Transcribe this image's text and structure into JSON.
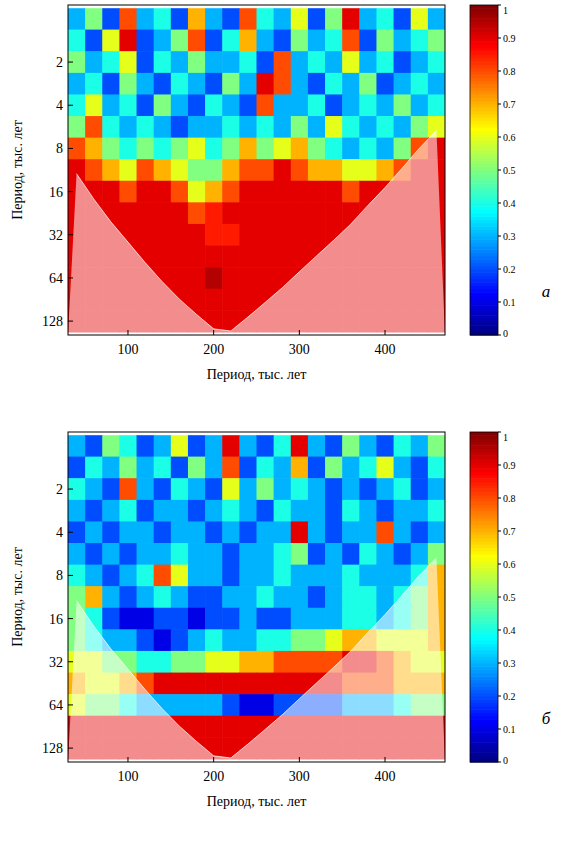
{
  "chart_data": [
    {
      "type": "heatmap",
      "log": "y",
      "xlabel": "Период, тыс. лет",
      "ylabel": "Период, тыс. лет",
      "annotations": [
        "а"
      ],
      "xlim": [
        30,
        470
      ],
      "ylim": [
        0.8,
        160
      ],
      "xticks": [
        100,
        200,
        300,
        400
      ],
      "yticks": [
        2,
        4,
        8,
        16,
        32,
        64,
        128
      ],
      "x": [
        40,
        60,
        80,
        100,
        120,
        140,
        160,
        180,
        200,
        220,
        240,
        260,
        280,
        300,
        320,
        340,
        360,
        380,
        400,
        420,
        440,
        460
      ],
      "y": [
        1,
        1.41,
        2,
        2.83,
        4,
        5.66,
        8,
        11.3,
        16,
        22.6,
        32,
        45.3,
        64,
        90.5,
        128
      ],
      "z": [
        [
          0.3,
          0.5,
          0.2,
          0.8,
          0.3,
          0.4,
          0.2,
          0.7,
          0.3,
          0.2,
          0.8,
          0.4,
          0.3,
          0.6,
          0.2,
          0.5,
          0.9,
          0.3,
          0.4,
          0.2,
          0.6,
          0.3
        ],
        [
          0.4,
          0.2,
          0.6,
          0.9,
          0.2,
          0.3,
          0.5,
          0.8,
          0.2,
          0.4,
          0.7,
          0.3,
          0.2,
          0.5,
          0.3,
          0.4,
          0.8,
          0.2,
          0.5,
          0.3,
          0.4,
          0.5
        ],
        [
          0.5,
          0.3,
          0.4,
          0.6,
          0.2,
          0.4,
          0.3,
          0.5,
          0.3,
          0.3,
          0.4,
          0.2,
          0.8,
          0.3,
          0.4,
          0.3,
          0.6,
          0.3,
          0.4,
          0.2,
          0.3,
          0.4
        ],
        [
          0.3,
          0.4,
          0.2,
          0.5,
          0.3,
          0.2,
          0.4,
          0.3,
          0.2,
          0.5,
          0.3,
          0.9,
          0.8,
          0.3,
          0.2,
          0.4,
          0.3,
          0.5,
          0.2,
          0.3,
          0.4,
          0.3
        ],
        [
          0.4,
          0.6,
          0.3,
          0.4,
          0.2,
          0.5,
          0.3,
          0.2,
          0.4,
          0.3,
          0.2,
          0.8,
          0.3,
          0.3,
          0.4,
          0.2,
          0.3,
          0.4,
          0.3,
          0.5,
          0.3,
          0.4
        ],
        [
          0.5,
          0.8,
          0.4,
          0.3,
          0.4,
          0.3,
          0.2,
          0.3,
          0.3,
          0.4,
          0.3,
          0.4,
          0.3,
          0.5,
          0.3,
          0.6,
          0.4,
          0.3,
          0.4,
          0.3,
          0.5,
          0.6
        ],
        [
          0.8,
          0.7,
          0.5,
          0.4,
          0.5,
          0.4,
          0.5,
          0.6,
          0.4,
          0.5,
          0.7,
          0.5,
          0.6,
          0.7,
          0.5,
          0.4,
          0.3,
          0.4,
          0.3,
          0.5,
          0.8,
          0.9
        ],
        [
          0.9,
          0.8,
          0.7,
          0.6,
          0.8,
          0.7,
          0.6,
          0.5,
          0.5,
          0.7,
          0.8,
          0.8,
          0.9,
          0.8,
          0.7,
          0.7,
          0.6,
          0.6,
          0.7,
          0.8,
          0.9,
          0.9
        ],
        [
          0.9,
          0.9,
          0.9,
          0.8,
          0.9,
          0.9,
          0.8,
          0.6,
          0.7,
          0.8,
          0.9,
          0.9,
          0.9,
          0.9,
          0.9,
          0.9,
          0.8,
          0.9,
          0.9,
          0.9,
          0.9,
          0.9
        ],
        [
          0.9,
          0.9,
          0.9,
          0.9,
          0.9,
          0.9,
          0.9,
          0.8,
          0.85,
          0.9,
          0.9,
          0.9,
          0.9,
          0.9,
          0.9,
          0.9,
          0.9,
          0.9,
          0.9,
          0.9,
          0.9,
          0.9
        ],
        [
          0.9,
          0.9,
          0.9,
          0.9,
          0.9,
          0.9,
          0.9,
          0.9,
          0.85,
          0.85,
          0.9,
          0.9,
          0.9,
          0.9,
          0.9,
          0.9,
          0.9,
          0.9,
          0.9,
          0.9,
          0.9,
          0.9
        ],
        [
          0.9,
          0.9,
          0.9,
          0.9,
          0.9,
          0.9,
          0.9,
          0.9,
          0.9,
          0.9,
          0.9,
          0.9,
          0.9,
          0.9,
          0.9,
          0.9,
          0.9,
          0.9,
          0.9,
          0.9,
          0.9,
          0.9
        ],
        [
          0.9,
          0.9,
          0.9,
          0.9,
          0.9,
          0.9,
          0.9,
          0.9,
          0.95,
          0.9,
          0.9,
          0.9,
          0.9,
          0.9,
          0.9,
          0.9,
          0.9,
          0.9,
          0.9,
          0.9,
          0.9,
          0.9
        ],
        [
          0.9,
          0.9,
          0.9,
          0.9,
          0.9,
          0.9,
          0.9,
          0.9,
          0.9,
          0.9,
          0.9,
          0.9,
          0.9,
          0.9,
          0.9,
          0.9,
          0.9,
          0.9,
          0.9,
          0.9,
          0.9,
          0.9
        ],
        [
          0.9,
          0.9,
          0.9,
          0.9,
          0.9,
          0.9,
          0.9,
          0.9,
          0.9,
          0.9,
          0.9,
          0.9,
          0.9,
          0.9,
          0.9,
          0.9,
          0.9,
          0.9,
          0.9,
          0.9,
          0.9,
          0.9
        ]
      ],
      "coi": [
        12,
        18,
        26,
        36,
        50,
        68,
        90,
        115,
        145,
        150,
        120,
        95,
        75,
        58,
        45,
        35,
        27,
        20,
        15,
        11,
        8,
        6
      ],
      "colorbar": {
        "range": [
          0,
          1
        ],
        "ticks": [
          0,
          0.1,
          0.2,
          0.3,
          0.4,
          0.5,
          0.6,
          0.7,
          0.8,
          0.9,
          1
        ]
      }
    },
    {
      "type": "heatmap",
      "log": "y",
      "xlabel": "Период, тыс. лет",
      "ylabel": "Период, тыс. лет",
      "annotations": [
        "б"
      ],
      "xlim": [
        30,
        470
      ],
      "ylim": [
        0.8,
        160
      ],
      "xticks": [
        100,
        200,
        300,
        400
      ],
      "yticks": [
        2,
        4,
        8,
        16,
        32,
        64,
        128
      ],
      "x": [
        40,
        60,
        80,
        100,
        120,
        140,
        160,
        180,
        200,
        220,
        240,
        260,
        280,
        300,
        320,
        340,
        360,
        380,
        400,
        420,
        440,
        460
      ],
      "y": [
        1,
        1.41,
        2,
        2.83,
        4,
        5.66,
        8,
        11.3,
        16,
        22.6,
        32,
        45.3,
        64,
        90.5,
        128
      ],
      "z": [
        [
          0.3,
          0.2,
          0.5,
          0.4,
          0.2,
          0.3,
          0.6,
          0.2,
          0.3,
          0.9,
          0.3,
          0.2,
          0.4,
          0.9,
          0.3,
          0.2,
          0.5,
          0.3,
          0.2,
          0.4,
          0.3,
          0.5
        ],
        [
          0.2,
          0.4,
          0.3,
          0.5,
          0.3,
          0.4,
          0.2,
          0.5,
          0.3,
          0.8,
          0.2,
          0.4,
          0.3,
          0.7,
          0.2,
          0.5,
          0.3,
          0.4,
          0.6,
          0.3,
          0.2,
          0.4
        ],
        [
          0.4,
          0.3,
          0.2,
          0.8,
          0.3,
          0.2,
          0.4,
          0.3,
          0.2,
          0.6,
          0.3,
          0.5,
          0.3,
          0.4,
          0.3,
          0.2,
          0.3,
          0.2,
          0.3,
          0.4,
          0.2,
          0.3
        ],
        [
          0.3,
          0.2,
          0.3,
          0.4,
          0.2,
          0.3,
          0.3,
          0.2,
          0.3,
          0.4,
          0.3,
          0.2,
          0.4,
          0.3,
          0.3,
          0.2,
          0.4,
          0.3,
          0.2,
          0.3,
          0.3,
          0.4
        ],
        [
          0.2,
          0.3,
          0.2,
          0.3,
          0.3,
          0.2,
          0.3,
          0.3,
          0.2,
          0.3,
          0.2,
          0.3,
          0.3,
          0.9,
          0.3,
          0.2,
          0.3,
          0.3,
          0.8,
          0.3,
          0.2,
          0.3
        ],
        [
          0.3,
          0.2,
          0.3,
          0.2,
          0.3,
          0.3,
          0.4,
          0.3,
          0.3,
          0.2,
          0.3,
          0.3,
          0.4,
          0.5,
          0.2,
          0.3,
          0.2,
          0.4,
          0.3,
          0.2,
          0.3,
          0.5
        ],
        [
          0.4,
          0.3,
          0.2,
          0.3,
          0.4,
          0.8,
          0.6,
          0.3,
          0.3,
          0.2,
          0.3,
          0.3,
          0.4,
          0.3,
          0.3,
          0.3,
          0.4,
          0.3,
          0.3,
          0.3,
          0.4,
          0.7
        ],
        [
          0.5,
          0.7,
          0.3,
          0.2,
          0.3,
          0.4,
          0.3,
          0.2,
          0.2,
          0.3,
          0.3,
          0.4,
          0.3,
          0.3,
          0.2,
          0.3,
          0.4,
          0.4,
          0.3,
          0.4,
          0.5,
          0.7
        ],
        [
          0.5,
          0.4,
          0.2,
          0.1,
          0.1,
          0.2,
          0.2,
          0.1,
          0.2,
          0.2,
          0.3,
          0.2,
          0.2,
          0.3,
          0.3,
          0.3,
          0.4,
          0.4,
          0.3,
          0.4,
          0.5,
          0.7
        ],
        [
          0.5,
          0.4,
          0.3,
          0.3,
          0.2,
          0.1,
          0.2,
          0.3,
          0.4,
          0.3,
          0.3,
          0.4,
          0.4,
          0.5,
          0.5,
          0.6,
          0.7,
          0.7,
          0.6,
          0.6,
          0.6,
          0.7
        ],
        [
          0.6,
          0.6,
          0.5,
          0.5,
          0.4,
          0.4,
          0.5,
          0.5,
          0.6,
          0.6,
          0.7,
          0.7,
          0.8,
          0.8,
          0.8,
          0.8,
          0.9,
          0.9,
          0.8,
          0.7,
          0.6,
          0.6
        ],
        [
          0.7,
          0.6,
          0.6,
          0.7,
          0.8,
          0.9,
          0.9,
          0.9,
          0.9,
          0.9,
          0.9,
          0.9,
          0.9,
          0.9,
          0.9,
          0.9,
          0.8,
          0.8,
          0.8,
          0.7,
          0.7,
          0.7
        ],
        [
          0.6,
          0.5,
          0.5,
          0.4,
          0.3,
          0.3,
          0.3,
          0.3,
          0.3,
          0.2,
          0.1,
          0.1,
          0.2,
          0.2,
          0.2,
          0.2,
          0.3,
          0.3,
          0.3,
          0.4,
          0.5,
          0.5
        ],
        [
          0.9,
          0.9,
          0.9,
          0.9,
          0.9,
          0.9,
          0.9,
          0.9,
          0.9,
          0.9,
          0.9,
          0.9,
          0.9,
          0.9,
          0.9,
          0.9,
          0.9,
          0.9,
          0.9,
          0.9,
          0.9,
          0.9
        ],
        [
          0.9,
          0.9,
          0.9,
          0.9,
          0.9,
          0.9,
          0.9,
          0.9,
          0.9,
          0.9,
          0.9,
          0.9,
          0.9,
          0.9,
          0.9,
          0.9,
          0.9,
          0.9,
          0.9,
          0.9,
          0.9,
          0.9
        ]
      ],
      "coi": [
        12,
        18,
        26,
        36,
        50,
        68,
        90,
        115,
        145,
        150,
        120,
        95,
        75,
        58,
        45,
        35,
        27,
        20,
        15,
        11,
        8,
        6
      ],
      "colorbar": {
        "range": [
          0,
          1
        ],
        "ticks": [
          0,
          0.1,
          0.2,
          0.3,
          0.4,
          0.5,
          0.6,
          0.7,
          0.8,
          0.9,
          1
        ]
      }
    }
  ]
}
